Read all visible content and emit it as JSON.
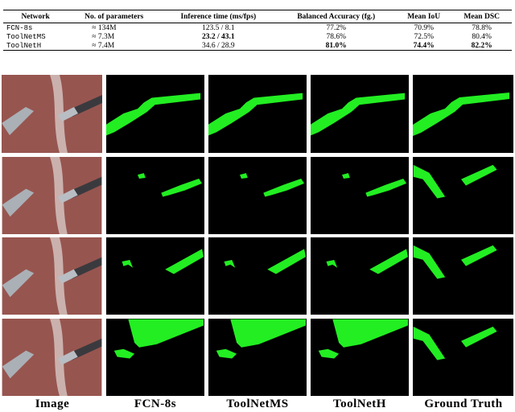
{
  "table": {
    "header": [
      "Network",
      "No. of parameters",
      "Inference time (ms/fps)",
      "Balanced Accuracy (fg.)",
      "Mean IoU",
      "Mean DSC"
    ],
    "rows": [
      [
        "FCN-8s",
        "≈ 134M",
        "123.5 / 8.1",
        "77.2%",
        "70.9%",
        "78.8%"
      ],
      [
        "ToolNetMS",
        "≈ 7.3M",
        "23.2 / 43.1",
        "78.6%",
        "72.5%",
        "80.4%"
      ],
      [
        "ToolNetH",
        "≈ 7.4M",
        "34.6 / 28.9",
        "81.0%",
        "74.4%",
        "82.2%"
      ]
    ]
  },
  "figure": {
    "column_labels": [
      "Image",
      "FCN-8s",
      "ToolNetMS",
      "ToolNetH",
      "Ground Truth"
    ]
  }
}
